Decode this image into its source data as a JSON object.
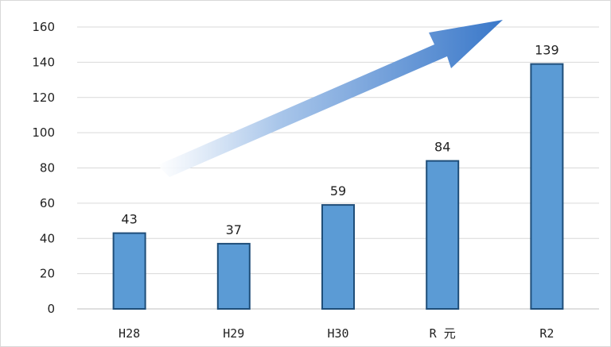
{
  "chart_data": {
    "type": "bar",
    "categories": [
      "H28",
      "H29",
      "H30",
      "R 元",
      "R2"
    ],
    "values": [
      43,
      37,
      59,
      84,
      139
    ],
    "data_labels": [
      "43",
      "37",
      "59",
      "84",
      "139"
    ],
    "ylim": [
      0,
      160
    ],
    "y_ticks": [
      0,
      20,
      40,
      60,
      80,
      100,
      120,
      140,
      160
    ],
    "grid": true,
    "legend": "none",
    "bar_color": "#5b9bd5",
    "bar_edge_color": "#1f4e79",
    "trend_arrow": true
  }
}
